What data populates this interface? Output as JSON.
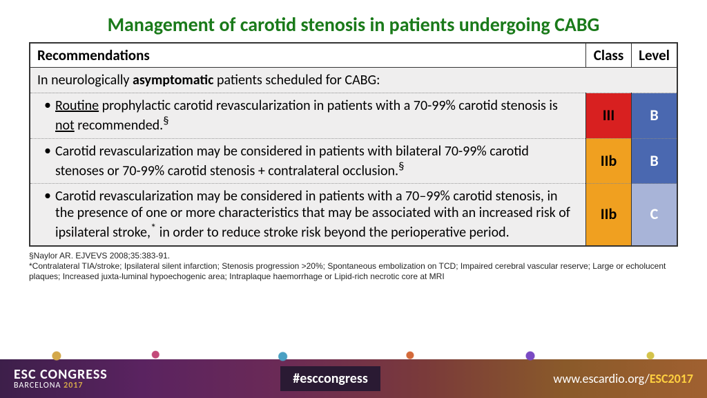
{
  "title": "Management of carotid stenosis in patients undergoing CABG",
  "title_color": "#1a7a1a",
  "headers": {
    "rec": "Recommendations",
    "cls": "Class",
    "lvl": "Level"
  },
  "section": {
    "prefix": "In neurologically ",
    "bold": "asymptomatic",
    "suffix": " patients scheduled for CABG:"
  },
  "rows": [
    {
      "html": "<span class='u'>Routine</span> prophylactic carotid revascularization in patients with a 70-99% carotid stenosis is <span class='u'>not</span> recommended.<sup>§</sup>",
      "cls": "III",
      "cls_bg": "#d82020",
      "cls_color": "#000000",
      "lvl": "B",
      "lvl_bg": "#4a68b0",
      "border": "dotted"
    },
    {
      "html": "Carotid revascularization may be considered in patients with bilateral 70-99% carotid stenoses or 70-99% carotid stenosis + contralateral occlusion.<sup>§</sup>",
      "cls": "IIb",
      "cls_bg": "#f0a020",
      "cls_color": "#000000",
      "lvl": "B",
      "lvl_bg": "#4a68b0",
      "border": "dotted"
    },
    {
      "html": "Carotid revascularization may be considered in patients with a 70–99% carotid stenosis, in the presence of one or more characteristics that may be associated with an increased risk of ipsilateral stroke,<sup>*</sup> in order to reduce stroke risk beyond the perioperative period.",
      "cls": "IIb",
      "cls_bg": "#f0a020",
      "cls_color": "#000000",
      "lvl": "C",
      "lvl_bg": "#a8b4d8",
      "border": "solid"
    }
  ],
  "footnotes": [
    "§Naylor AR. EJVEVS 2008;35:383-91.",
    "*Contralateral TIA/stroke; Ipsilateral silent infarction; Stenosis progression >20%; Spontaneous embolization on TCD; Impaired cerebral vascular reserve; Large or echolucent plaques; Increased juxta-luminal hypoechogenic area; Intraplaque haemorrhage or Lipid-rich necrotic core at MRI"
  ],
  "footer": {
    "left1": "ESC CONGRESS",
    "left2a": "BARCELONA ",
    "left2b": "2017",
    "mid": "#esccongress",
    "right_prefix": "www.escardio.org/",
    "right_bold": "ESC2017"
  }
}
